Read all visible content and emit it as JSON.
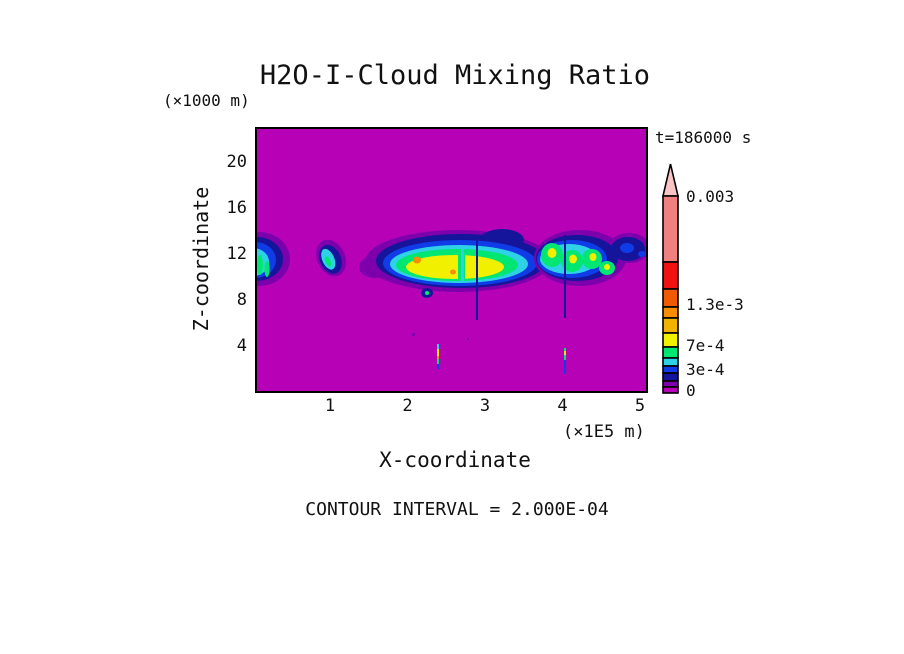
{
  "title": "H2O-I-Cloud Mixing Ratio",
  "time_label": "t=186000 s",
  "footer_note": "CONTOUR INTERVAL = 2.000E-04",
  "y_axis": {
    "label": "Z-coordinate",
    "unit": "(×1000 m)",
    "ticks": [
      "20",
      "16",
      "12",
      "8",
      "4"
    ]
  },
  "x_axis": {
    "label": "X-coordinate",
    "unit": "(×1E5 m)",
    "ticks": [
      "1",
      "2",
      "3",
      "4",
      "5"
    ]
  },
  "colorbar": {
    "labels": [
      "0.003",
      "1.3e-3",
      "7e-4",
      "3e-4",
      "0"
    ],
    "bands_top_to_bottom": [
      "salmon",
      "red",
      "orange_red",
      "orange",
      "amber",
      "yellow",
      "green",
      "cyan",
      "blue",
      "navy",
      "purple",
      "magenta"
    ],
    "overflow_arrow": "above-max"
  },
  "palette": {
    "magenta": "#b701b7",
    "purple": "#7d00ad",
    "navy": "#15159b",
    "blue": "#0f3ce6",
    "cyan": "#2fd1e6",
    "green": "#00e673",
    "yellow": "#f0f000",
    "amber": "#f0b400",
    "orange": "#fa8c00",
    "orange_red": "#f05a00",
    "red": "#f01111",
    "salmon": "#f08080",
    "arrow_pink": "#f9c4c4",
    "text": "#111111",
    "plot_border": "#000000"
  },
  "chart_data": {
    "type": "heatmap",
    "subtype": "filled-contour",
    "title": "H2O-I-Cloud Mixing Ratio",
    "xlabel": "X-coordinate",
    "x_unit": "×1E5 m",
    "x_ticks": [
      1,
      2,
      3,
      4,
      5
    ],
    "xlim": [
      0,
      5.1
    ],
    "ylabel": "Z-coordinate",
    "y_unit": "×1000 m",
    "y_ticks": [
      4,
      8,
      12,
      16,
      20
    ],
    "ylim": [
      0,
      23
    ],
    "time": "t=186000 s",
    "contour_interval": 0.0002,
    "colorbar_labeled_levels": [
      0,
      0.0003,
      0.0007,
      0.0013,
      0.003
    ],
    "colorbar_bands_top_to_bottom": [
      "salmon",
      "red",
      "orange_red",
      "orange",
      "amber",
      "yellow",
      "green",
      "cyan",
      "blue",
      "navy",
      "purple",
      "magenta"
    ],
    "background_field_value": "0 (magenta fill over whole domain)",
    "grid": false,
    "legend_position": "right colorbar with overflow arrow",
    "features": [
      {
        "name": "left-edge-cloud",
        "x_extent": [
          0.0,
          0.45
        ],
        "z_extent": [
          9.6,
          13.6
        ],
        "peak_band": "green (~7e-4)"
      },
      {
        "name": "small-cloud",
        "x_extent": [
          0.81,
          1.22
        ],
        "z_extent": [
          10.0,
          13.4
        ],
        "peak_band": "green (~7e-4)"
      },
      {
        "name": "main-anvil-cloud",
        "x_extent": [
          1.49,
          3.81
        ],
        "z_extent": [
          8.3,
          14.3
        ],
        "peak_band": "orange spots (~1.3e-3), broad yellow core"
      },
      {
        "name": "right-cloud",
        "x_extent": [
          3.68,
          5.1
        ],
        "z_extent": [
          8.8,
          14.3
        ],
        "peak_band": "yellow spots in green lobes; navy lobe reaches right edge"
      },
      {
        "name": "fall-streak-1",
        "x": 2.9,
        "z_extent": [
          6.3,
          13.3
        ],
        "band": "navy thin vertical line under main cloud"
      },
      {
        "name": "fall-streak-2",
        "x": 4.03,
        "z_extent": [
          1.6,
          12.9
        ],
        "band": "navy/blue line with bright green-yellow segment near z=2.5-4"
      },
      {
        "name": "fall-streak-3",
        "x": 2.39,
        "z_extent": [
          2.2,
          4.3
        ],
        "band": "thin cyan/yellow/orange/green/blue streak"
      }
    ]
  }
}
